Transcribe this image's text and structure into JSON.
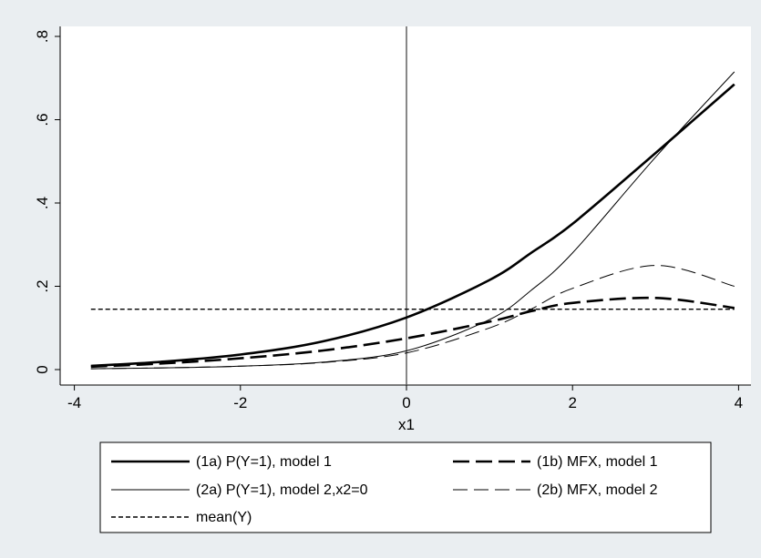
{
  "chart_data": {
    "type": "line",
    "title": "",
    "xlabel": "x1",
    "ylabel": "",
    "xlim": [
      -4,
      4
    ],
    "ylim": [
      0,
      0.8
    ],
    "x_ticks": [
      -4,
      -2,
      0,
      2,
      4
    ],
    "x_tick_labels": [
      "-4",
      "-2",
      "0",
      "2",
      "4"
    ],
    "y_ticks": [
      0,
      0.2,
      0.4,
      0.6,
      0.8
    ],
    "y_tick_labels": [
      "0",
      ".2",
      ".4",
      ".6",
      ".8"
    ],
    "vertical_reference_line_x": 0,
    "grid": false,
    "legend_position": "bottom",
    "x": [
      -3.8,
      -3,
      -2,
      -1,
      0,
      1,
      1.5,
      2,
      3,
      3.95
    ],
    "series": [
      {
        "name": "(1a) P(Y=1), model 1",
        "style": "thick-solid",
        "values": [
          0.009,
          0.018,
          0.036,
          0.068,
          0.125,
          0.215,
          0.28,
          0.35,
          0.52,
          0.685
        ]
      },
      {
        "name": "(1b) MFX, model 1",
        "style": "thick-dashed",
        "values": [
          0.007,
          0.014,
          0.027,
          0.046,
          0.075,
          0.115,
          0.14,
          0.16,
          0.172,
          0.148
        ]
      },
      {
        "name": "(2a) P(Y=1), model 2,x2=0",
        "style": "thin-solid",
        "values": [
          0.002,
          0.004,
          0.008,
          0.018,
          0.045,
          0.12,
          0.19,
          0.28,
          0.51,
          0.715
        ]
      },
      {
        "name": "(2b) MFX, model 2",
        "style": "thin-dashed",
        "values": [
          0.002,
          0.004,
          0.008,
          0.017,
          0.04,
          0.1,
          0.145,
          0.195,
          0.25,
          0.2
        ]
      },
      {
        "name": "mean(Y)",
        "style": "short-dashed",
        "values": [
          0.145,
          0.145,
          0.145,
          0.145,
          0.145,
          0.145,
          0.145,
          0.145,
          0.145,
          0.145
        ]
      }
    ]
  },
  "colors": {
    "background": "#eaeef1",
    "plot_background": "#ffffff",
    "line": "#000000"
  }
}
